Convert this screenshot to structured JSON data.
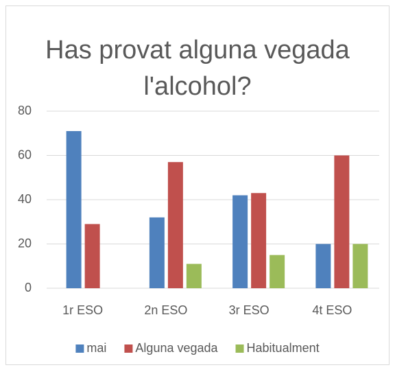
{
  "chart_data": {
    "type": "bar",
    "title": "Has provat alguna vegada l'alcohol?",
    "categories": [
      "1r ESO",
      "2n ESO",
      "3r ESO",
      "4t ESO"
    ],
    "series": [
      {
        "name": "mai",
        "color": "#4f81bd",
        "values": [
          71,
          32,
          42,
          20
        ]
      },
      {
        "name": "Alguna vegada",
        "color": "#c0504d",
        "values": [
          29,
          57,
          43,
          60
        ]
      },
      {
        "name": "Habitualment",
        "color": "#9bbb59",
        "values": [
          0,
          11,
          15,
          20
        ]
      }
    ],
    "ylim": [
      0,
      80
    ],
    "yticks": [
      0,
      20,
      40,
      60,
      80
    ],
    "grid": true,
    "legend": "bottom"
  }
}
